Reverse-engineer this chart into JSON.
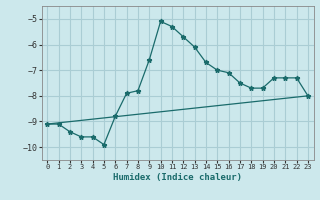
{
  "title": "",
  "xlabel": "Humidex (Indice chaleur)",
  "background_color": "#cce8ec",
  "grid_color": "#aacdd4",
  "line_color": "#1a6b6b",
  "xlim": [
    -0.5,
    23.5
  ],
  "ylim": [
    -10.5,
    -4.5
  ],
  "yticks": [
    -10,
    -9,
    -8,
    -7,
    -6,
    -5
  ],
  "xticks": [
    0,
    1,
    2,
    3,
    4,
    5,
    6,
    7,
    8,
    9,
    10,
    11,
    12,
    13,
    14,
    15,
    16,
    17,
    18,
    19,
    20,
    21,
    22,
    23
  ],
  "line1_x": [
    0,
    1,
    2,
    3,
    4,
    5,
    6,
    7,
    8,
    9,
    10,
    11,
    12,
    13,
    14,
    15,
    16,
    17,
    18,
    19,
    20,
    21,
    22,
    23
  ],
  "line1_y": [
    -9.1,
    -9.1,
    -9.4,
    -9.6,
    -9.6,
    -9.9,
    -8.8,
    -7.9,
    -7.8,
    -6.6,
    -5.1,
    -5.3,
    -5.7,
    -6.1,
    -6.7,
    -7.0,
    -7.1,
    -7.5,
    -7.7,
    -7.7,
    -7.3,
    -7.3,
    -7.3,
    -8.0
  ],
  "line2_x": [
    0,
    23
  ],
  "line2_y": [
    -9.1,
    -8.0
  ]
}
